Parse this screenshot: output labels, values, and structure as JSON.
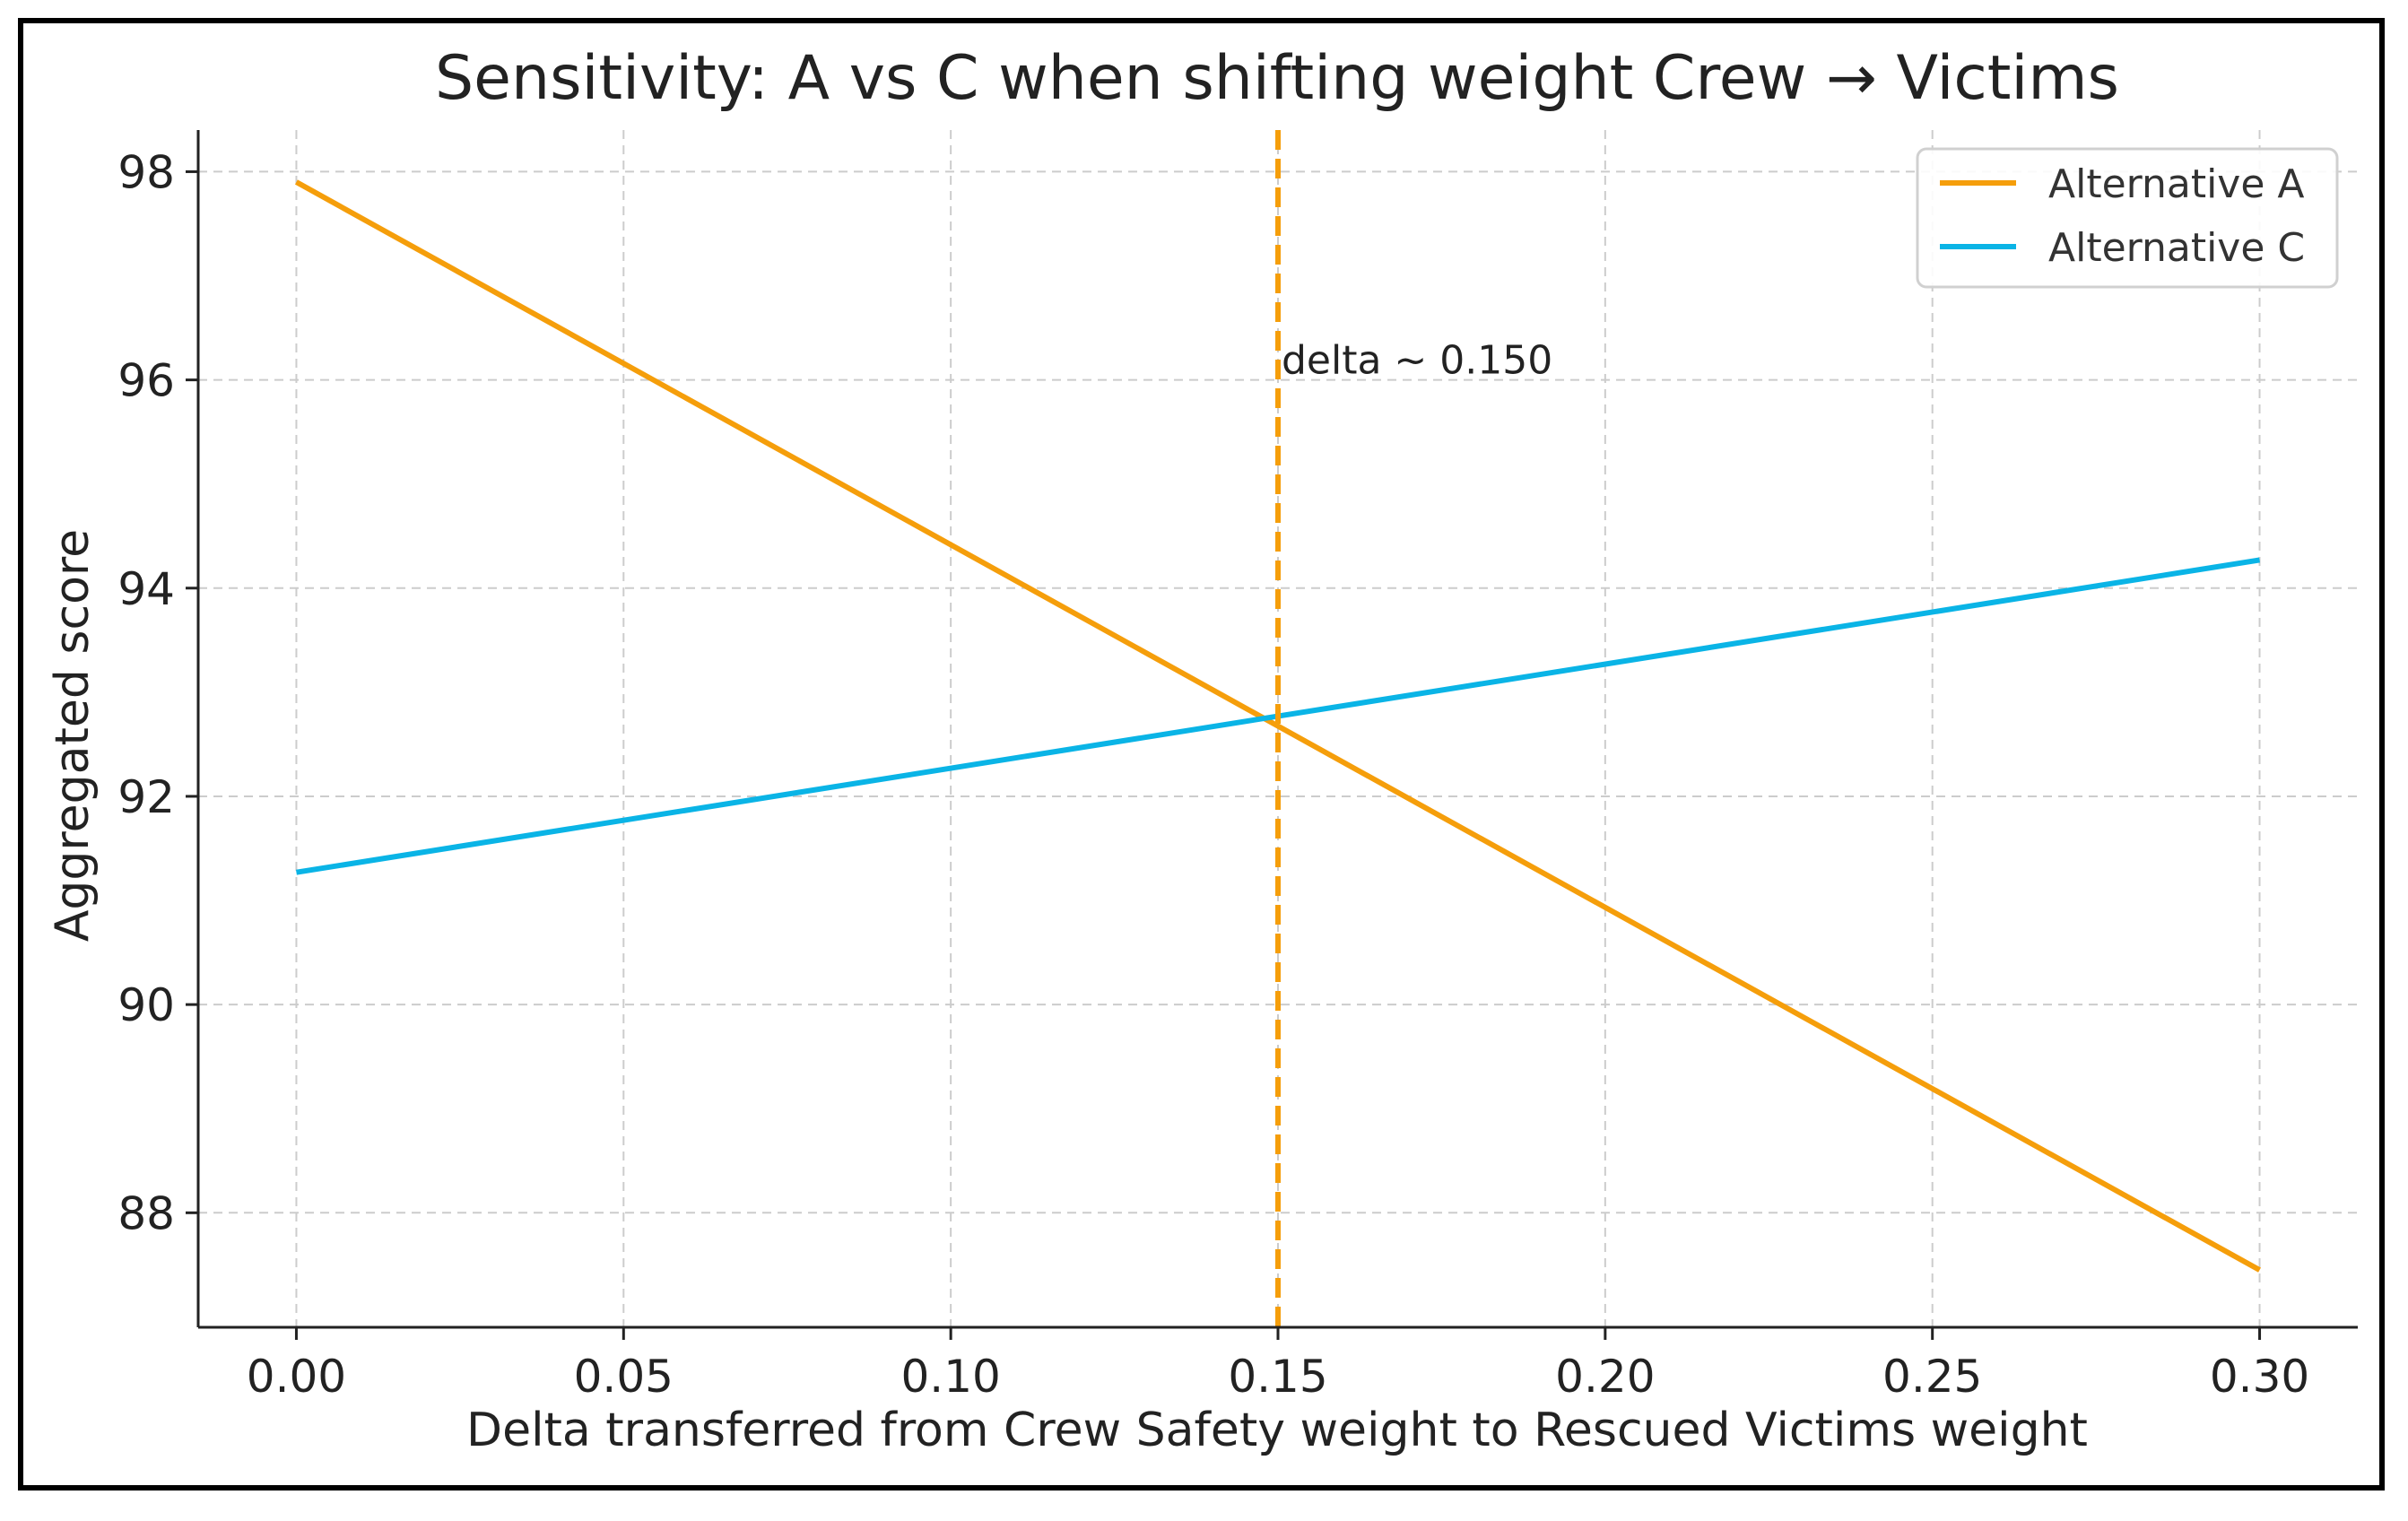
{
  "chart_data": {
    "type": "line",
    "title": "Sensitivity: A vs C when shifting weight Crew → Victims",
    "xlabel": "Delta transferred from Crew Safety weight to Rescued Victims weight",
    "ylabel": "Aggregated score",
    "xlim": [
      -0.015,
      0.315
    ],
    "ylim": [
      86.9,
      98.4
    ],
    "x_ticks": [
      0.0,
      0.05,
      0.1,
      0.15,
      0.2,
      0.25,
      0.3
    ],
    "x_tick_labels": [
      "0.00",
      "0.05",
      "0.10",
      "0.15",
      "0.20",
      "0.25",
      "0.30"
    ],
    "y_ticks": [
      88,
      90,
      92,
      94,
      96,
      98
    ],
    "y_tick_labels": [
      "88",
      "90",
      "92",
      "94",
      "96",
      "98"
    ],
    "grid": true,
    "legend_position": "top-right",
    "series": [
      {
        "name": "Alternative A",
        "color": "#f59e0b",
        "x": [
          0.0,
          0.3
        ],
        "y": [
          97.9,
          87.45
        ]
      },
      {
        "name": "Alternative C",
        "color": "#0ab4e6",
        "x": [
          0.0,
          0.3
        ],
        "y": [
          91.27,
          94.27
        ]
      }
    ],
    "vline": {
      "x": 0.15,
      "color": "#f59e0b",
      "style": "dashed"
    },
    "annotation": {
      "text": "delta ~ 0.150",
      "x": 0.15,
      "y": 96.2
    }
  }
}
